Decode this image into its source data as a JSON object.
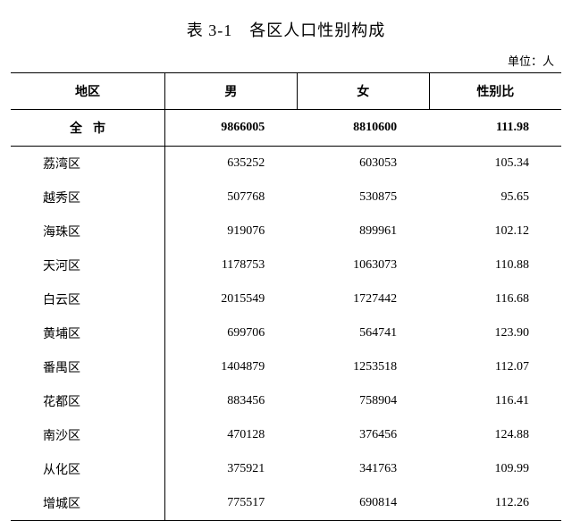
{
  "title": "表 3-1　各区人口性别构成",
  "unit_label": "单位：人",
  "headers": {
    "region": "地区",
    "male": "男",
    "female": "女",
    "ratio": "性别比"
  },
  "total_row": {
    "label": "全市",
    "male": "9866005",
    "female": "8810600",
    "ratio": "111.98"
  },
  "rows": [
    {
      "region": "荔湾区",
      "male": "635252",
      "female": "603053",
      "ratio": "105.34"
    },
    {
      "region": "越秀区",
      "male": "507768",
      "female": "530875",
      "ratio": "95.65"
    },
    {
      "region": "海珠区",
      "male": "919076",
      "female": "899961",
      "ratio": "102.12"
    },
    {
      "region": "天河区",
      "male": "1178753",
      "female": "1063073",
      "ratio": "110.88"
    },
    {
      "region": "白云区",
      "male": "2015549",
      "female": "1727442",
      "ratio": "116.68"
    },
    {
      "region": "黄埔区",
      "male": "699706",
      "female": "564741",
      "ratio": "123.90"
    },
    {
      "region": "番禺区",
      "male": "1404879",
      "female": "1253518",
      "ratio": "112.07"
    },
    {
      "region": "花都区",
      "male": "883456",
      "female": "758904",
      "ratio": "116.41"
    },
    {
      "region": "南沙区",
      "male": "470128",
      "female": "376456",
      "ratio": "124.88"
    },
    {
      "region": "从化区",
      "male": "375921",
      "female": "341763",
      "ratio": "109.99"
    },
    {
      "region": "增城区",
      "male": "775517",
      "female": "690814",
      "ratio": "112.26"
    }
  ],
  "style": {
    "background_color": "#ffffff",
    "text_color": "#000000",
    "border_color": "#000000",
    "title_fontsize": 18,
    "body_fontsize": 14,
    "unit_fontsize": 13,
    "col_widths_pct": [
      28,
      24,
      24,
      24
    ],
    "row_padding_v": 9,
    "header_padding_v": 10
  }
}
